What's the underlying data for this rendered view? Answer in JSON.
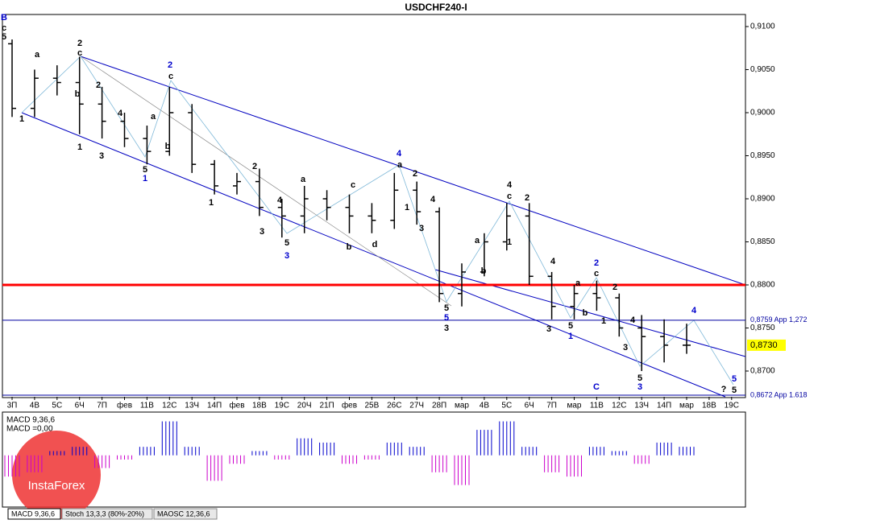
{
  "chart_data": {
    "type": "ohlc",
    "title": "USDCHF240-I",
    "categories": [
      "3П",
      "4В",
      "5С",
      "6Ч",
      "7П",
      "фев",
      "11В",
      "12С",
      "13Ч",
      "14П",
      "фев",
      "18В",
      "19С",
      "20Ч",
      "21П",
      "фев",
      "25В",
      "26С",
      "27Ч",
      "28П",
      "мар",
      "4В",
      "5С",
      "6Ч",
      "7П",
      "мар",
      "11В",
      "12С",
      "13Ч",
      "14П",
      "мар",
      "18В",
      "19С"
    ],
    "open": [
      0.908,
      0.9005,
      0.904,
      0.9035,
      0.901,
      0.899,
      0.897,
      0.8955,
      0.9,
      0.894,
      0.8915,
      0.892,
      0.889,
      0.888,
      0.89,
      0.889,
      0.888,
      0.8875,
      0.891,
      0.8885,
      0.879,
      0.8815,
      0.885,
      0.888,
      0.881,
      0.8775,
      0.879,
      0.8785,
      0.875,
      0.874,
      0.873,
      null,
      null
    ],
    "high": [
      0.9085,
      0.905,
      0.9055,
      0.9065,
      0.903,
      0.9,
      0.8985,
      0.903,
      0.901,
      0.8945,
      0.893,
      0.8935,
      0.89,
      0.8915,
      0.891,
      0.8905,
      0.8895,
      0.893,
      0.892,
      0.889,
      0.8825,
      0.886,
      0.8895,
      0.8895,
      0.8815,
      0.88,
      0.8805,
      0.879,
      0.8765,
      0.876,
      0.8755,
      null,
      null
    ],
    "low": [
      0.8995,
      0.8995,
      0.902,
      0.8975,
      0.897,
      0.896,
      0.894,
      0.895,
      0.893,
      0.8905,
      0.8905,
      0.888,
      0.8855,
      0.886,
      0.8875,
      0.886,
      0.886,
      0.8865,
      0.887,
      0.878,
      0.8775,
      0.881,
      0.884,
      0.88,
      0.876,
      0.876,
      0.877,
      0.874,
      0.87,
      0.871,
      0.872,
      null,
      null
    ],
    "close": [
      0.9005,
      0.904,
      0.9035,
      0.901,
      0.899,
      0.897,
      0.8955,
      0.9,
      0.894,
      0.8915,
      0.892,
      0.889,
      0.888,
      0.89,
      0.889,
      0.888,
      0.8875,
      0.891,
      0.8885,
      0.879,
      0.8815,
      0.885,
      0.888,
      0.881,
      0.8775,
      0.879,
      0.8785,
      0.875,
      0.874,
      0.873,
      0.873,
      null,
      null
    ],
    "color": "#000000",
    "ylim": [
      0.86701,
      0.9114
    ],
    "yticks": [
      {
        "value": 0.91,
        "label": "0,9100"
      },
      {
        "value": 0.905,
        "label": "0,9050"
      },
      {
        "value": 0.9,
        "label": "0,9000"
      },
      {
        "value": 0.895,
        "label": "0,8950"
      },
      {
        "value": 0.89,
        "label": "0,8900"
      },
      {
        "value": 0.885,
        "label": "0,8850"
      },
      {
        "value": 0.88,
        "label": "0,8800"
      },
      {
        "value": 0.875,
        "label": "0,8750"
      },
      {
        "value": 0.87,
        "label": "0,8700"
      }
    ],
    "levels": [
      {
        "value": 0.88,
        "color": "#ff0000"
      },
      {
        "value": 0.8759,
        "label": "0,8759 App 1,272",
        "color": "#0000a0"
      },
      {
        "value": 0.8672,
        "label": "0,8672 App 1.618",
        "color": "#0000a0"
      }
    ],
    "current_price": {
      "value": 0.873,
      "label": "0,8730",
      "color": "#ffff00"
    },
    "annotations": [
      {
        "text": "B",
        "color": "#0000cc"
      },
      {
        "text": "c",
        "color": "#000"
      },
      {
        "text": "5",
        "color": "#000"
      },
      {
        "text": "1",
        "color": "#000"
      },
      {
        "text": "a",
        "color": "#000"
      },
      {
        "text": "2",
        "color": "#000"
      },
      {
        "text": "c",
        "color": "#000"
      },
      {
        "text": "b",
        "color": "#000"
      },
      {
        "text": "1",
        "color": "#000"
      },
      {
        "text": "2",
        "color": "#000"
      },
      {
        "text": "3",
        "color": "#000"
      },
      {
        "text": "4",
        "color": "#000"
      },
      {
        "text": "5",
        "color": "#000"
      },
      {
        "text": "1",
        "color": "#0000cc"
      },
      {
        "text": "2",
        "color": "#0000cc"
      },
      {
        "text": "c",
        "color": "#000"
      },
      {
        "text": "a",
        "color": "#000"
      },
      {
        "text": "b",
        "color": "#000"
      },
      {
        "text": "2",
        "color": "#000"
      },
      {
        "text": "1",
        "color": "#000"
      },
      {
        "text": "4",
        "color": "#000"
      },
      {
        "text": "3",
        "color": "#000"
      },
      {
        "text": "5",
        "color": "#000"
      },
      {
        "text": "3",
        "color": "#0000cc"
      },
      {
        "text": "a",
        "color": "#000"
      },
      {
        "text": "c",
        "color": "#000"
      },
      {
        "text": "b",
        "color": "#000"
      },
      {
        "text": "d",
        "color": "#000"
      },
      {
        "text": "4",
        "color": "#0000cc"
      },
      {
        "text": "a",
        "color": "#000"
      },
      {
        "text": "2",
        "color": "#000"
      },
      {
        "text": "1",
        "color": "#000"
      },
      {
        "text": "4",
        "color": "#000"
      },
      {
        "text": "3",
        "color": "#000"
      },
      {
        "text": "5",
        "color": "#000"
      },
      {
        "text": "5",
        "color": "#0000cc"
      },
      {
        "text": "3",
        "color": "#000"
      },
      {
        "text": "a",
        "color": "#000"
      },
      {
        "text": "b",
        "color": "#000"
      },
      {
        "text": "4",
        "color": "#000"
      },
      {
        "text": "c",
        "color": "#000"
      },
      {
        "text": "2",
        "color": "#000"
      },
      {
        "text": "1",
        "color": "#000"
      },
      {
        "text": "4",
        "color": "#000"
      },
      {
        "text": "3",
        "color": "#000"
      },
      {
        "text": "5",
        "color": "#000"
      },
      {
        "text": "1",
        "color": "#0000cc"
      },
      {
        "text": "a",
        "color": "#000"
      },
      {
        "text": "b",
        "color": "#000"
      },
      {
        "text": "2",
        "color": "#0000cc"
      },
      {
        "text": "c",
        "color": "#000"
      },
      {
        "text": "2",
        "color": "#000"
      },
      {
        "text": "1",
        "color": "#000"
      },
      {
        "text": "4",
        "color": "#000"
      },
      {
        "text": "3",
        "color": "#000"
      },
      {
        "text": "5",
        "color": "#000"
      },
      {
        "text": "3",
        "color": "#0000cc"
      },
      {
        "text": "4",
        "color": "#0000cc"
      },
      {
        "text": "C",
        "color": "#0000cc"
      },
      {
        "text": "?",
        "color": "#000"
      },
      {
        "text": "5",
        "color": "#0000cc"
      },
      {
        "text": "5",
        "color": "#000"
      }
    ],
    "macd": {
      "label": "MACD 9,36,6",
      "value_label": "MACD =0,00",
      "values": [
        -0.0005,
        -0.0004,
        0.0001,
        0.0002,
        -0.0003,
        -0.0001,
        0.0002,
        0.0008,
        0.0002,
        -0.0006,
        -0.0002,
        0.0001,
        -0.0001,
        0.0004,
        0.0003,
        -0.0002,
        -0.0001,
        0.0003,
        0.0002,
        -0.0004,
        -0.0007,
        0.0006,
        0.0008,
        0.0002,
        -0.0004,
        -0.0005,
        0.0002,
        0.0001,
        -0.0002,
        0.0003,
        0.0002,
        null,
        null
      ],
      "ylim": [
        -0.0012,
        0.001
      ],
      "positive_color": "#0000cc",
      "negative_color": "#cc00cc"
    },
    "tabs": [
      "MACD 9,36,6",
      "Stoch 13,3,3 (80%-20%)",
      "MAOSC 12,36,6"
    ],
    "watermark": "InstaForex"
  }
}
